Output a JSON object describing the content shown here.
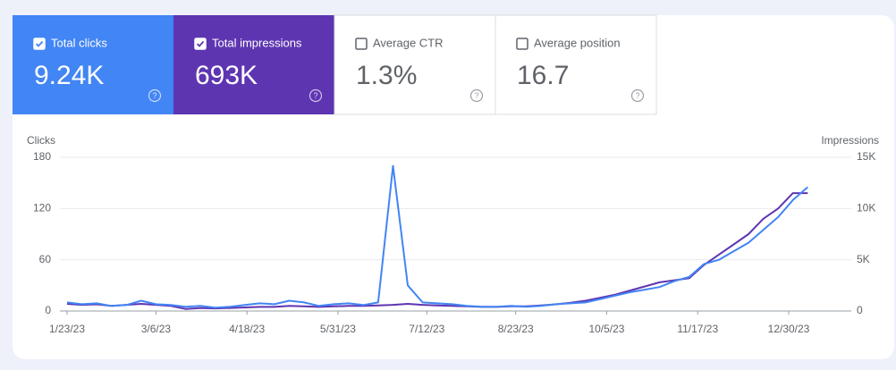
{
  "cards": [
    {
      "label": "Total clicks",
      "value": "9.24K",
      "checked": true,
      "color": "#4285f4"
    },
    {
      "label": "Total impressions",
      "value": "693K",
      "checked": true,
      "color": "#5e35b1"
    },
    {
      "label": "Average CTR",
      "value": "1.3%",
      "checked": false,
      "color": "#ffffff"
    },
    {
      "label": "Average position",
      "value": "16.7",
      "checked": false,
      "color": "#ffffff"
    }
  ],
  "chart_data": {
    "type": "line",
    "y_label": "Clicks",
    "y2_label": "Impressions",
    "x": [
      "1/23/23",
      "1/30/23",
      "2/6/23",
      "2/13/23",
      "2/20/23",
      "2/27/23",
      "3/6/23",
      "3/13/23",
      "3/20/23",
      "3/27/23",
      "4/3/23",
      "4/10/23",
      "4/17/23",
      "4/24/23",
      "5/1/23",
      "5/8/23",
      "5/15/23",
      "5/22/23",
      "5/29/23",
      "6/5/23",
      "6/12/23",
      "6/19/23",
      "6/26/23",
      "7/3/23",
      "7/10/23",
      "7/17/23",
      "7/24/23",
      "7/31/23",
      "8/7/23",
      "8/14/23",
      "8/21/23",
      "8/28/23",
      "9/4/23",
      "9/11/23",
      "9/18/23",
      "9/25/23",
      "10/2/23",
      "10/9/23",
      "10/16/23",
      "10/23/23",
      "10/30/23",
      "11/6/23",
      "11/13/23",
      "11/20/23",
      "11/27/23",
      "12/4/23",
      "12/11/23",
      "12/18/23",
      "12/25/23",
      "1/1/24",
      "1/8/24"
    ],
    "series": [
      {
        "name": "Total clicks",
        "color": "#4285f4",
        "values": [
          10,
          8,
          9,
          6,
          7,
          12,
          8,
          7,
          5,
          6,
          4,
          5,
          7,
          9,
          8,
          12,
          10,
          6,
          8,
          9,
          7,
          10,
          170,
          30,
          10,
          9,
          8,
          6,
          5,
          5,
          6,
          5,
          6,
          8,
          9,
          10,
          14,
          18,
          22,
          25,
          28,
          35,
          40,
          55,
          60,
          70,
          80,
          95,
          110,
          130,
          145
        ]
      },
      {
        "name": "Total impressions",
        "color": "#5e35b1",
        "axis": "y2",
        "values": [
          700,
          600,
          650,
          500,
          600,
          700,
          600,
          500,
          200,
          300,
          250,
          300,
          350,
          400,
          400,
          500,
          450,
          400,
          450,
          500,
          500,
          550,
          600,
          700,
          600,
          550,
          500,
          450,
          400,
          400,
          450,
          450,
          550,
          650,
          800,
          1000,
          1300,
          1600,
          2000,
          2400,
          2800,
          3000,
          3200,
          4500,
          5500,
          6500,
          7500,
          9000,
          10000,
          11500,
          11500
        ]
      }
    ],
    "ylim": [
      0,
      180
    ],
    "yticks": [
      0,
      60,
      120,
      180
    ],
    "y2lim": [
      0,
      15000
    ],
    "y2ticks": [
      0,
      {
        "value": 5000,
        "label": "5K"
      },
      {
        "value": 10000,
        "label": "10K"
      },
      {
        "value": 15000,
        "label": "15K"
      }
    ],
    "xticks": [
      "1/23/23",
      "3/6/23",
      "4/18/23",
      "5/31/23",
      "7/12/23",
      "8/23/23",
      "10/5/23",
      "11/17/23",
      "12/30/23"
    ],
    "grid": true
  }
}
